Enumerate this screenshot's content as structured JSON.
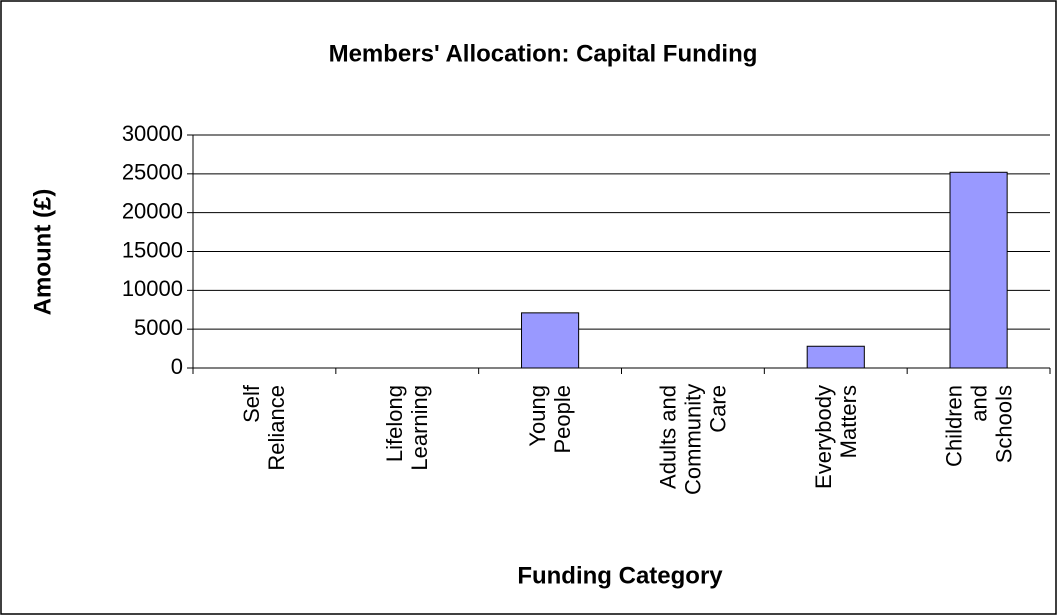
{
  "chart_data": {
    "type": "bar",
    "title": "Members' Allocation: Capital Funding",
    "x_label": "Funding Category",
    "y_label": "Amount (£)",
    "categories": [
      "Self Reliance",
      "Lifelong Learning",
      "Young People",
      "Adults and Community Care",
      "Everybody Matters",
      "Children and Schools"
    ],
    "values": [
      0,
      0,
      7100,
      0,
      2800,
      25200
    ],
    "color": "#9999ff",
    "ylim": [
      0,
      30000
    ],
    "yticks": [
      0,
      5000,
      10000,
      15000,
      20000,
      25000,
      30000
    ],
    "grid": true
  }
}
